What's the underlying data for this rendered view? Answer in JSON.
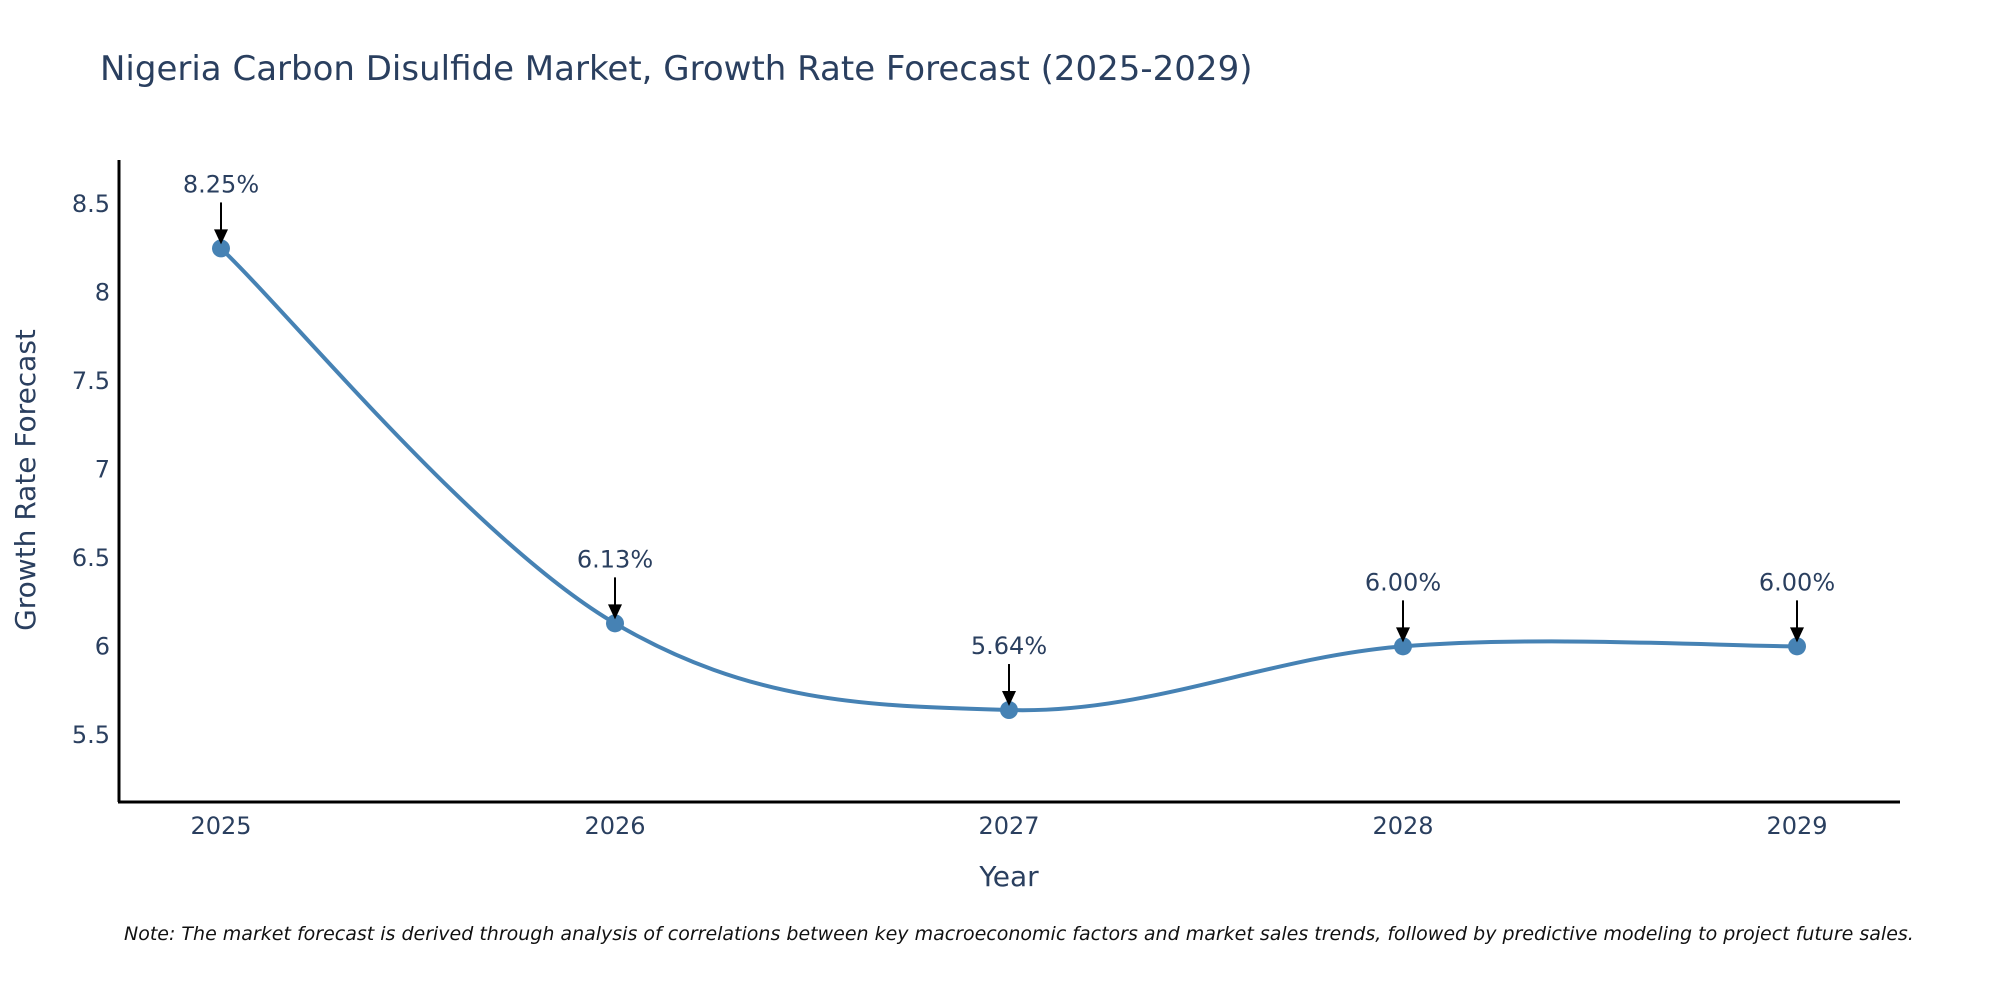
{
  "chart_data": {
    "type": "line",
    "title": "Nigeria Carbon Disulfide Market, Growth Rate Forecast (2025-2029)",
    "xlabel": "Year",
    "ylabel": "Growth Rate Forecast",
    "categories": [
      "2025",
      "2026",
      "2027",
      "2028",
      "2029"
    ],
    "values": [
      8.25,
      6.13,
      5.64,
      6.0,
      6.0
    ],
    "data_labels": [
      "8.25%",
      "6.13%",
      "5.64%",
      "6.00%",
      "6.00%"
    ],
    "ylim": [
      5.12,
      8.75
    ],
    "yticks": [
      5.5,
      6,
      6.5,
      7,
      7.5,
      8,
      8.5
    ],
    "ytick_labels": [
      "5.5",
      "6",
      "6.5",
      "7",
      "7.5",
      "8",
      "8.5"
    ],
    "line_shape": "spline",
    "color": "#4682b4",
    "grid": false,
    "note": "Note: The market forecast is derived through analysis of correlations between key macroeconomic factors and market sales trends, followed by predictive modeling to project future sales."
  }
}
